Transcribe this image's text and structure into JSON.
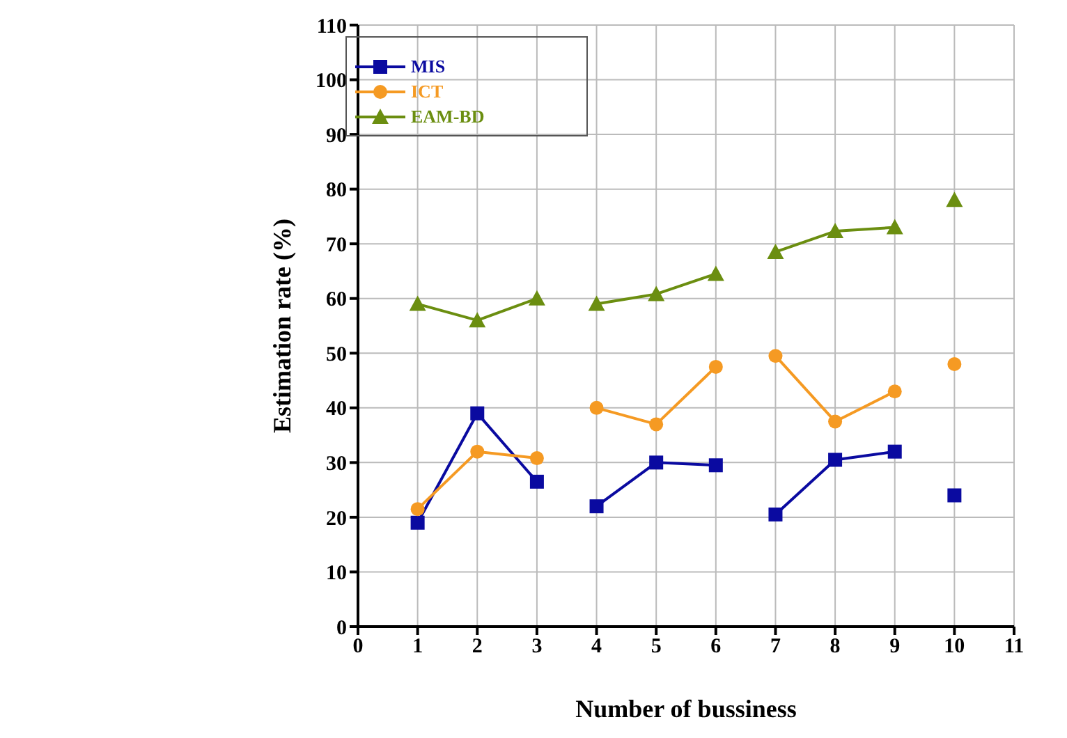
{
  "chart_data": {
    "type": "line",
    "xlabel": "Number of bussiness",
    "ylabel": "Estimation  rate (%)",
    "x": [
      1,
      2,
      3,
      3.5,
      4,
      5,
      6,
      6.5,
      7,
      8,
      9,
      9.5,
      10
    ],
    "series": [
      {
        "name": "MIS",
        "color": "#0a0aa0",
        "marker": "square",
        "values": [
          19,
          39,
          26.5,
          null,
          22,
          30,
          29.5,
          null,
          20.5,
          30.5,
          32,
          null,
          24
        ]
      },
      {
        "name": "ICT",
        "color": "#f59a23",
        "marker": "circle",
        "values": [
          21.5,
          32,
          30.8,
          null,
          40,
          37,
          47.5,
          null,
          49.5,
          37.5,
          43,
          null,
          48
        ]
      },
      {
        "name": "EAM-BD",
        "color": "#6b8e10",
        "marker": "triangle",
        "values": [
          59,
          56,
          60,
          null,
          59,
          60.8,
          64.5,
          null,
          68.5,
          72.3,
          73,
          null,
          78
        ]
      }
    ],
    "xlim": [
      0,
      11
    ],
    "xticks": [
      0,
      1,
      2,
      3,
      4,
      5,
      6,
      7,
      8,
      9,
      10,
      11
    ],
    "ylim": [
      0,
      110
    ],
    "yticks": [
      0,
      10,
      20,
      30,
      40,
      50,
      60,
      70,
      80,
      90,
      100,
      110
    ],
    "grid": true,
    "legend": "top"
  }
}
